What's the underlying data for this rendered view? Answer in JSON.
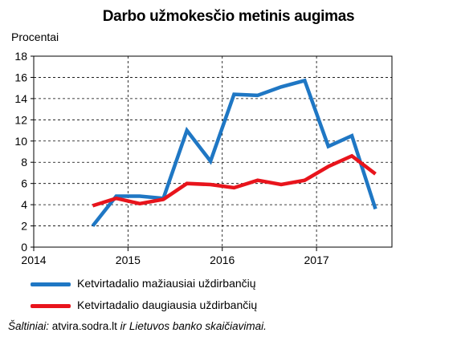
{
  "chart_data": {
    "type": "line",
    "title": "Darbo užmokesčio metinis augimas",
    "ylabel": "Procentai",
    "xlabel": "",
    "ylim": [
      0,
      18
    ],
    "yticks": [
      0,
      2,
      4,
      6,
      8,
      10,
      12,
      14,
      16,
      18
    ],
    "x_tick_labels": [
      "2014",
      "2015",
      "2016",
      "2017"
    ],
    "grid": true,
    "legend_position": "bottom",
    "x": [
      "2014 Q3",
      "2014 Q4",
      "2015 Q1",
      "2015 Q2",
      "2015 Q3",
      "2015 Q4",
      "2016 Q1",
      "2016 Q2",
      "2016 Q3",
      "2016 Q4",
      "2017 Q1",
      "2017 Q2",
      "2017 Q3"
    ],
    "series": [
      {
        "name": "Ketvirtadalio mažiausiai uždirbančių",
        "color": "#1f77c4",
        "values": [
          2.0,
          4.8,
          4.8,
          4.6,
          11.0,
          8.1,
          14.4,
          14.3,
          15.1,
          15.7,
          9.5,
          10.5,
          3.6
        ]
      },
      {
        "name": "Ketvirtadalio daugiausia uždirbančių",
        "color": "#e8141c",
        "values": [
          3.9,
          4.6,
          4.1,
          4.5,
          6.0,
          5.9,
          5.6,
          6.3,
          5.9,
          6.3,
          7.6,
          8.6,
          6.9
        ]
      }
    ]
  },
  "source": {
    "prefix": "Šaltiniai:",
    "text1": " atvira.sodra.lt ",
    "conj": "ir",
    "text2": " Lietuvos banko skaičiavimai."
  }
}
